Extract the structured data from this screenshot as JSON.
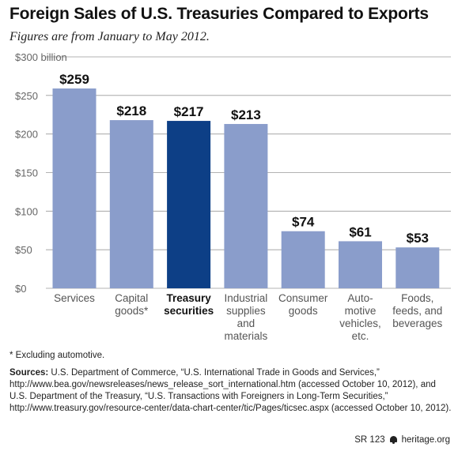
{
  "title": "Foreign Sales of U.S. Treasuries Compared to Exports",
  "subtitle": "Figures are from January to May 2012.",
  "chart_data": {
    "type": "bar",
    "categories": [
      [
        "Services"
      ],
      [
        "Capital",
        "goods*"
      ],
      [
        "Treasury",
        "securities"
      ],
      [
        "Industrial",
        "supplies",
        "and",
        "materials"
      ],
      [
        "Consumer",
        "goods"
      ],
      [
        "Auto-",
        "motive",
        "vehicles,",
        "etc."
      ],
      [
        "Foods,",
        "feeds, and",
        "beverages"
      ]
    ],
    "values": [
      259,
      218,
      217,
      213,
      74,
      61,
      53
    ],
    "value_labels": [
      "$259",
      "$218",
      "$217",
      "$213",
      "$74",
      "$61",
      "$53"
    ],
    "highlight_index": 2,
    "ylim": [
      0,
      300
    ],
    "yticks": [
      0,
      50,
      100,
      150,
      200,
      250,
      300
    ],
    "ytick_labels": [
      "$0",
      "$50",
      "$100",
      "$150",
      "$200",
      "$250",
      "$300 billion"
    ],
    "grid": true,
    "colors": {
      "bar": "#8a9dcb",
      "highlight": "#0d3f86",
      "grid": "#9a9a9a"
    }
  },
  "footnote": "* Excluding automotive.",
  "sources_label": "Sources:",
  "sources_text": "U.S. Department of Commerce, “U.S. International Trade in Goods and Services,” http://www.bea.gov/newsreleases/news_release_sort_international.htm (accessed October 10, 2012), and U.S. Department of the Treasury, “U.S. Transactions with Foreigners in Long-Term Securities,” http://www.treasury.gov/resource-center/data-chart-center/tic/Pages/ticsec.aspx (accessed October 10, 2012).",
  "footer": {
    "report": "SR 123",
    "site": "heritage.org",
    "logo_icon": "liberty-bell-icon"
  }
}
